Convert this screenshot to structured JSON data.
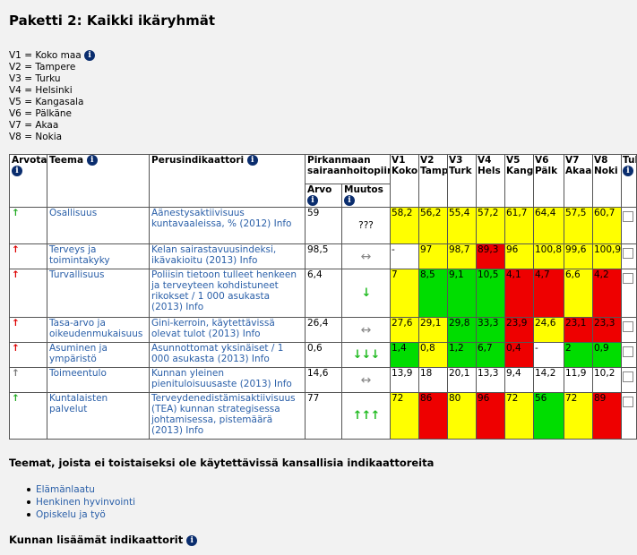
{
  "page": {
    "title": "Paketti 2: Kaikki ikäryhmät"
  },
  "legend": [
    "V1 = Koko maa",
    "V2 = Tampere",
    "V3 = Turku",
    "V4 = Helsinki",
    "V5 = Kangasala",
    "V6 = Pälkäne",
    "V7 = Akaa",
    "V8 = Nokia"
  ],
  "headers": {
    "arvota": "Arvota",
    "teema": "Teema",
    "perus": "Perusindikaattori",
    "pirk1": "Pirkanmaan",
    "pirk2": "sairaanhoitopiiri",
    "arvo": "Arvo",
    "muutos": "Muutos",
    "v": [
      {
        "id": "V1",
        "name": "Koko"
      },
      {
        "id": "V2",
        "name": "Tamp"
      },
      {
        "id": "V3",
        "name": "Turk"
      },
      {
        "id": "V4",
        "name": "Hels"
      },
      {
        "id": "V5",
        "name": "Kang"
      },
      {
        "id": "V6",
        "name": "Pälk"
      },
      {
        "id": "V7",
        "name": "Akaa"
      },
      {
        "id": "V8",
        "name": "Noki"
      }
    ],
    "tul": "Tul"
  },
  "rows": [
    {
      "arrow": "green",
      "theme": "Osallisuus",
      "indicator": "Äänestysaktiivisuus kuntavaaleissa, % (2012) Info",
      "value": "59",
      "change": "???",
      "vals": [
        "58,2",
        "56,2",
        "55,4",
        "57,2",
        "61,7",
        "64,4",
        "57,5",
        "60,7"
      ],
      "colors": [
        "yellow",
        "yellow",
        "yellow",
        "yellow",
        "yellow",
        "yellow",
        "yellow",
        "yellow"
      ]
    },
    {
      "arrow": "red",
      "theme": "Terveys ja toimintakyky",
      "indicator": "Kelan sairastavuusindeksi, ikävakioitu (2013) Info",
      "value": "98,5",
      "change": "↔",
      "vals": [
        "-",
        "97",
        "98,7",
        "89,3",
        "96",
        "100,8",
        "99,6",
        "100,9"
      ],
      "colors": [
        "",
        "yellow",
        "yellow",
        "red",
        "yellow",
        "yellow",
        "yellow",
        "yellow"
      ]
    },
    {
      "arrow": "red",
      "theme": "Turvallisuus",
      "indicator": "Poliisin tietoon tulleet henkeen ja terveyteen kohdistuneet rikokset / 1 000 asukasta (2013) Info",
      "value": "6,4",
      "change": "↓",
      "vals": [
        "7",
        "8,5",
        "9,1",
        "10,5",
        "4,1",
        "4,7",
        "6,6",
        "4,2"
      ],
      "colors": [
        "yellow",
        "green",
        "green",
        "green",
        "red",
        "red",
        "yellow",
        "red"
      ]
    },
    {
      "arrow": "red",
      "theme": "Tasa-arvo ja oikeudenmukaisuus",
      "indicator": "Gini-kerroin, käytettävissä olevat tulot (2013) Info",
      "value": "26,4",
      "change": "↔",
      "vals": [
        "27,6",
        "29,1",
        "29,8",
        "33,3",
        "23,9",
        "24,6",
        "23,1",
        "23,3"
      ],
      "colors": [
        "yellow",
        "yellow",
        "green",
        "green",
        "red",
        "yellow",
        "red",
        "red"
      ]
    },
    {
      "arrow": "red",
      "theme": "Asuminen ja ympäristö",
      "indicator": "Asunnottomat yksinäiset / 1 000 asukasta (2013) Info",
      "value": "0,6",
      "change": "↓↓↓",
      "vals": [
        "1,4",
        "0,8",
        "1,2",
        "6,7",
        "0,4",
        "-",
        "2",
        "0,9"
      ],
      "colors": [
        "green",
        "yellow",
        "green",
        "green",
        "red",
        "",
        "green",
        "green"
      ]
    },
    {
      "arrow": "gray",
      "theme": "Toimeentulo",
      "indicator": "Kunnan yleinen pienituloisuusaste (2013) Info",
      "value": "14,6",
      "change": "↔",
      "vals": [
        "13,9",
        "18",
        "20,1",
        "13,3",
        "9,4",
        "14,2",
        "11,9",
        "10,2"
      ],
      "colors": [
        "",
        "",
        "",
        "",
        "",
        "",
        "",
        ""
      ]
    },
    {
      "arrow": "green",
      "theme": "Kuntalaisten palvelut",
      "indicator": "Terveydenedistämisaktiivisuus (TEA) kunnan strategisessa johtamisessa, pistemäärä (2013) Info",
      "value": "77",
      "change": "↑↑↑",
      "vals": [
        "72",
        "86",
        "80",
        "96",
        "72",
        "56",
        "72",
        "89"
      ],
      "colors": [
        "yellow",
        "red",
        "yellow",
        "red",
        "yellow",
        "green",
        "yellow",
        "red"
      ]
    }
  ],
  "section2": {
    "title": "Teemat, joista ei toistaiseksi ole käytettävissä kansallisia indikaattoreita",
    "items": [
      "Elämänlaatu",
      "Henkinen hyvinvointi",
      "Opiskelu ja työ"
    ]
  },
  "section3": {
    "title": "Kunnan lisäämät indikaattorit"
  },
  "colors": {
    "yellow": "#ffff00",
    "green": "#00dd00",
    "red": "#ee0000",
    "link": "#2a5fa8"
  }
}
